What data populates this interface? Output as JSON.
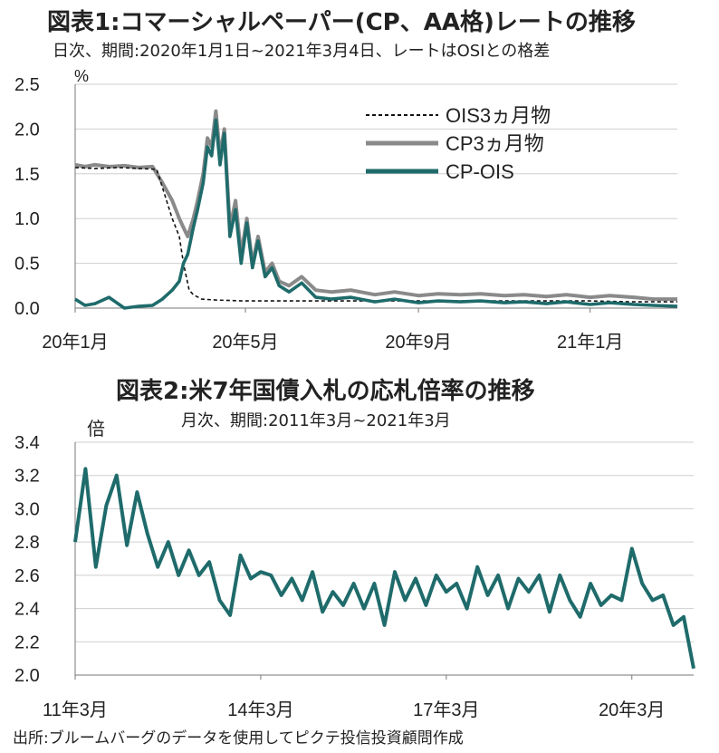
{
  "chart1": {
    "title": "図表1:コマーシャルペーパー(CP、AA格)レートの推移",
    "subtitle": "日次、期間:2020年1月1日~2021年3月4日、レートはOSIとの格差",
    "unit": "%",
    "series_colors": {
      "ois": "#111111",
      "cp": "#8a8a8a",
      "cpois": "#1f6b6b"
    }
  },
  "chart2": {
    "title": "図表2:米7年国債入札の応札倍率の推移",
    "subtitle": "月次、期間:2011年3月~2021年3月",
    "unit": "倍",
    "line_color": "#1f6b6b"
  },
  "source": "出所:ブルームバーグのデータを使用してピクテ投信投資顧問作成",
  "chart_data": [
    {
      "type": "line",
      "title": "図表1:コマーシャルペーパー(CP、AA格)レートの推移",
      "subtitle": "日次、期間:2020年1月1日~2021年3月4日、レートはOSIとの格差",
      "ylabel": "%",
      "ylim": [
        0,
        2.5
      ],
      "yticks": [
        "0.0",
        "0.5",
        "1.0",
        "1.5",
        "2.0",
        "2.5"
      ],
      "xlim": [
        "2020-01-01",
        "2021-03-04"
      ],
      "xticks": [
        {
          "date": "2020-01-01",
          "label": "20年1月"
        },
        {
          "date": "2020-05-01",
          "label": "20年5月"
        },
        {
          "date": "2020-09-01",
          "label": "20年9月"
        },
        {
          "date": "2021-01-01",
          "label": "21年1月"
        }
      ],
      "grid": "horizontal",
      "legend_position": "top-right",
      "series": [
        {
          "name": "OIS3ヵ月物",
          "style": "dashed",
          "x": [
            "2020-01-01",
            "2020-01-15",
            "2020-02-01",
            "2020-02-15",
            "2020-02-28",
            "2020-03-05",
            "2020-03-10",
            "2020-03-15",
            "2020-03-18",
            "2020-03-22",
            "2020-03-25",
            "2020-03-31",
            "2020-04-10",
            "2020-04-30",
            "2020-06-01",
            "2020-07-01",
            "2020-08-01",
            "2020-09-01",
            "2020-10-01",
            "2020-11-01",
            "2020-12-01",
            "2021-01-01",
            "2021-02-01",
            "2021-03-04"
          ],
          "y": [
            1.57,
            1.56,
            1.57,
            1.56,
            1.55,
            1.25,
            1.0,
            0.8,
            0.5,
            0.2,
            0.15,
            0.1,
            0.09,
            0.08,
            0.08,
            0.08,
            0.08,
            0.08,
            0.08,
            0.08,
            0.08,
            0.08,
            0.07,
            0.07
          ]
        },
        {
          "name": "CP3ヵ月物",
          "style": "solid",
          "x": [
            "2020-01-01",
            "2020-01-08",
            "2020-01-15",
            "2020-01-25",
            "2020-02-05",
            "2020-02-15",
            "2020-02-25",
            "2020-03-03",
            "2020-03-10",
            "2020-03-15",
            "2020-03-18",
            "2020-03-21",
            "2020-03-25",
            "2020-03-28",
            "2020-04-01",
            "2020-04-04",
            "2020-04-07",
            "2020-04-10",
            "2020-04-13",
            "2020-04-16",
            "2020-04-20",
            "2020-04-24",
            "2020-04-28",
            "2020-05-02",
            "2020-05-06",
            "2020-05-10",
            "2020-05-15",
            "2020-05-20",
            "2020-05-25",
            "2020-06-01",
            "2020-06-10",
            "2020-06-20",
            "2020-07-01",
            "2020-07-15",
            "2020-08-01",
            "2020-08-15",
            "2020-09-01",
            "2020-09-15",
            "2020-10-01",
            "2020-10-15",
            "2020-11-01",
            "2020-11-15",
            "2020-12-01",
            "2020-12-15",
            "2021-01-01",
            "2021-01-15",
            "2021-02-01",
            "2021-02-15",
            "2021-03-04"
          ],
          "y": [
            1.6,
            1.58,
            1.6,
            1.58,
            1.59,
            1.57,
            1.58,
            1.4,
            1.2,
            1.0,
            0.9,
            0.8,
            1.0,
            1.2,
            1.5,
            1.9,
            1.8,
            2.2,
            1.7,
            2.0,
            0.9,
            1.2,
            0.6,
            1.0,
            0.5,
            0.8,
            0.4,
            0.5,
            0.3,
            0.25,
            0.35,
            0.2,
            0.18,
            0.2,
            0.15,
            0.18,
            0.14,
            0.16,
            0.15,
            0.16,
            0.14,
            0.15,
            0.13,
            0.15,
            0.12,
            0.14,
            0.12,
            0.1,
            0.1
          ]
        },
        {
          "name": "CP-OIS",
          "style": "solid",
          "x": [
            "2020-01-01",
            "2020-01-08",
            "2020-01-15",
            "2020-01-25",
            "2020-02-05",
            "2020-02-15",
            "2020-02-25",
            "2020-03-03",
            "2020-03-10",
            "2020-03-15",
            "2020-03-18",
            "2020-03-21",
            "2020-03-25",
            "2020-03-28",
            "2020-04-01",
            "2020-04-04",
            "2020-04-07",
            "2020-04-10",
            "2020-04-13",
            "2020-04-16",
            "2020-04-20",
            "2020-04-24",
            "2020-04-28",
            "2020-05-02",
            "2020-05-06",
            "2020-05-10",
            "2020-05-15",
            "2020-05-20",
            "2020-05-25",
            "2020-06-01",
            "2020-06-10",
            "2020-06-20",
            "2020-07-01",
            "2020-07-15",
            "2020-08-01",
            "2020-08-15",
            "2020-09-01",
            "2020-09-15",
            "2020-10-01",
            "2020-10-15",
            "2020-11-01",
            "2020-11-15",
            "2020-12-01",
            "2020-12-15",
            "2021-01-01",
            "2021-01-15",
            "2021-02-01",
            "2021-02-15",
            "2021-03-04"
          ],
          "y": [
            0.1,
            0.03,
            0.05,
            0.12,
            0.0,
            0.02,
            0.03,
            0.1,
            0.2,
            0.3,
            0.5,
            0.6,
            0.9,
            1.1,
            1.4,
            1.8,
            1.7,
            2.1,
            1.6,
            1.95,
            0.8,
            1.1,
            0.5,
            0.95,
            0.45,
            0.75,
            0.35,
            0.45,
            0.25,
            0.18,
            0.28,
            0.12,
            0.1,
            0.12,
            0.07,
            0.1,
            0.06,
            0.08,
            0.07,
            0.08,
            0.06,
            0.07,
            0.05,
            0.07,
            0.04,
            0.06,
            0.04,
            0.03,
            0.02
          ]
        }
      ]
    },
    {
      "type": "line",
      "title": "図表2:米7年国債入札の応札倍率の推移",
      "subtitle": "月次、期間:2011年3月~2021年3月",
      "ylabel": "倍",
      "ylim": [
        2.0,
        3.4
      ],
      "yticks": [
        "2.0",
        "2.2",
        "2.4",
        "2.6",
        "2.8",
        "3.0",
        "3.2",
        "3.4"
      ],
      "xlim": [
        "2011-03",
        "2021-03"
      ],
      "xticks": [
        {
          "date": "2011-03",
          "label": "11年3月"
        },
        {
          "date": "2014-03",
          "label": "14年3月"
        },
        {
          "date": "2017-03",
          "label": "17年3月"
        },
        {
          "date": "2020-03",
          "label": "20年3月"
        }
      ],
      "grid": "horizontal",
      "series": [
        {
          "x": [
            "2011-03",
            "2011-05",
            "2011-07",
            "2011-09",
            "2011-11",
            "2012-01",
            "2012-03",
            "2012-05",
            "2012-07",
            "2012-09",
            "2012-11",
            "2013-01",
            "2013-03",
            "2013-05",
            "2013-07",
            "2013-09",
            "2013-11",
            "2014-01",
            "2014-03",
            "2014-05",
            "2014-07",
            "2014-09",
            "2014-11",
            "2015-01",
            "2015-03",
            "2015-05",
            "2015-07",
            "2015-09",
            "2015-11",
            "2016-01",
            "2016-03",
            "2016-05",
            "2016-07",
            "2016-09",
            "2016-11",
            "2017-01",
            "2017-03",
            "2017-05",
            "2017-07",
            "2017-09",
            "2017-11",
            "2018-01",
            "2018-03",
            "2018-05",
            "2018-07",
            "2018-09",
            "2018-11",
            "2019-01",
            "2019-03",
            "2019-05",
            "2019-07",
            "2019-09",
            "2019-11",
            "2020-01",
            "2020-03",
            "2020-05",
            "2020-07",
            "2020-09",
            "2020-11",
            "2021-01",
            "2021-03"
          ],
          "y": [
            2.8,
            3.24,
            2.65,
            3.02,
            3.2,
            2.78,
            3.1,
            2.85,
            2.65,
            2.8,
            2.6,
            2.75,
            2.6,
            2.68,
            2.45,
            2.36,
            2.72,
            2.58,
            2.62,
            2.6,
            2.48,
            2.58,
            2.45,
            2.62,
            2.38,
            2.5,
            2.42,
            2.55,
            2.4,
            2.55,
            2.3,
            2.62,
            2.45,
            2.58,
            2.42,
            2.6,
            2.5,
            2.55,
            2.4,
            2.65,
            2.48,
            2.6,
            2.4,
            2.58,
            2.5,
            2.6,
            2.38,
            2.6,
            2.45,
            2.35,
            2.55,
            2.42,
            2.48,
            2.45,
            2.76,
            2.55,
            2.45,
            2.48,
            2.3,
            2.35,
            2.04
          ]
        }
      ]
    }
  ]
}
